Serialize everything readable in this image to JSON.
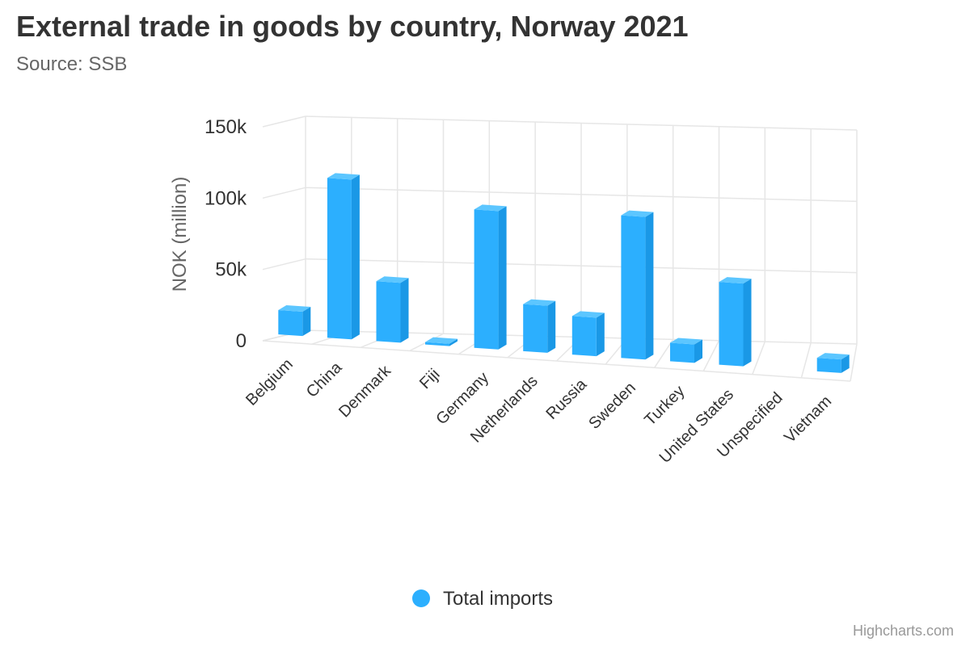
{
  "title": "External trade in goods by country, Norway 2021",
  "subtitle": "Source: SSB",
  "credits": "Highcharts.com",
  "chart_data": {
    "type": "bar",
    "three_d": true,
    "ylabel": "NOK (million)",
    "ylim": [
      0,
      150000
    ],
    "y_ticks": [
      0,
      50000,
      100000,
      150000
    ],
    "y_tick_labels": [
      "0",
      "50k",
      "100k",
      "150k"
    ],
    "categories": [
      "Belgium",
      "China",
      "Denmark",
      "Fiji",
      "Germany",
      "Netherlands",
      "Russia",
      "Sweden",
      "Turkey",
      "United States",
      "Unspecified",
      "Vietnam"
    ],
    "series": [
      {
        "name": "Total imports",
        "color": "#2caffe",
        "values": [
          17000,
          112000,
          42000,
          800,
          97000,
          33000,
          27000,
          100000,
          13000,
          58000,
          null,
          9500
        ]
      }
    ],
    "legend_position": "bottom-center",
    "grid": true
  }
}
